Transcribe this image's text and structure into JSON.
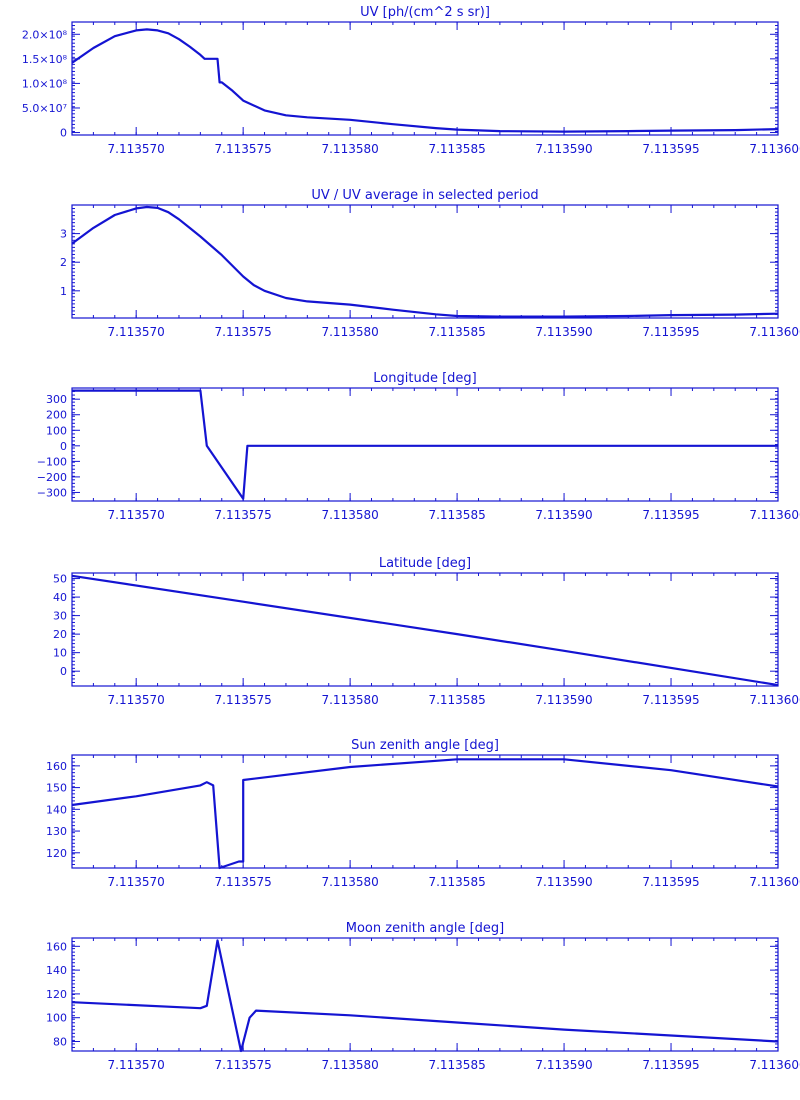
{
  "colors": {
    "plot": "#1414d2",
    "background": "#ffffff"
  },
  "chart_data": [
    {
      "type": "line",
      "title": "UV [ph/(cm^2 s sr)]",
      "x": [
        7.113567,
        7.113568,
        7.113569,
        7.11357,
        7.1135705,
        7.113571,
        7.1135715,
        7.113572,
        7.1135725,
        7.113573,
        7.1135732,
        7.1135738,
        7.1135739,
        7.113574,
        7.1135745,
        7.113575,
        7.113576,
        7.113577,
        7.113578,
        7.11358,
        7.113582,
        7.113584,
        7.113585,
        7.113587,
        7.11359,
        7.113593,
        7.113595,
        7.113598,
        7.1136
      ],
      "y": [
        142000000.0,
        172000000.0,
        196000000.0,
        208000000.0,
        210000000.0,
        208000000.0,
        202000000.0,
        190000000.0,
        175000000.0,
        158000000.0,
        150000000.0,
        150000000.0,
        102000000.0,
        102000000.0,
        85000000.0,
        65000000.0,
        45000000.0,
        35000000.0,
        31000000.0,
        26000000.0,
        17000000.0,
        9000000.0,
        6000000.0,
        3000000.0,
        2000000.0,
        3000000.0,
        4000000.0,
        5000000.0,
        7000000.0
      ],
      "yticks": [
        0,
        50000000.0,
        100000000.0,
        150000000.0,
        200000000.0
      ],
      "yticklabels": [
        "0",
        "5.0×10⁷",
        "1.0×10⁸",
        "1.5×10⁸",
        "2.0×10⁸"
      ],
      "ylim": [
        -5000000.0,
        225000000.0
      ],
      "xlim": [
        7.113567,
        7.1136
      ]
    },
    {
      "type": "line",
      "title": "UV / UV average in selected period",
      "x": [
        7.113567,
        7.113568,
        7.113569,
        7.11357,
        7.1135705,
        7.113571,
        7.1135715,
        7.113572,
        7.1135725,
        7.113573,
        7.113574,
        7.113575,
        7.1135755,
        7.113576,
        7.113577,
        7.113578,
        7.11358,
        7.113582,
        7.113584,
        7.113585,
        7.113587,
        7.11359,
        7.113593,
        7.113595,
        7.113598,
        7.1136
      ],
      "y": [
        2.65,
        3.2,
        3.65,
        3.88,
        3.93,
        3.9,
        3.75,
        3.5,
        3.2,
        2.9,
        2.25,
        1.5,
        1.2,
        1.0,
        0.75,
        0.63,
        0.52,
        0.34,
        0.18,
        0.12,
        0.1,
        0.1,
        0.12,
        0.15,
        0.17,
        0.2
      ],
      "yticks": [
        1,
        2,
        3
      ],
      "yticklabels": [
        "1",
        "2",
        "3"
      ],
      "ylim": [
        0.05,
        4.0
      ],
      "xlim": [
        7.113567,
        7.1136
      ]
    },
    {
      "type": "line",
      "title": "Longitude [deg]",
      "x": [
        7.113567,
        7.113573,
        7.113573,
        7.1135733,
        7.113575,
        7.1135752,
        7.1136
      ],
      "y": [
        355,
        355,
        355,
        0,
        -340,
        0,
        0
      ],
      "yticks": [
        -300,
        -200,
        -100,
        0,
        100,
        200,
        300
      ],
      "yticklabels": [
        "−300",
        "−200",
        "−100",
        "0",
        "100",
        "200",
        "300"
      ],
      "ylim": [
        -355,
        372
      ],
      "xlim": [
        7.113567,
        7.1136
      ]
    },
    {
      "type": "line",
      "title": "Latitude [deg]",
      "x": [
        7.113567,
        7.113575,
        7.113585,
        7.11359,
        7.1136
      ],
      "y": [
        51.5,
        37.5,
        20.0,
        11.0,
        -7.5
      ],
      "yticks": [
        0,
        10,
        20,
        30,
        40,
        50
      ],
      "yticklabels": [
        "0",
        "10",
        "20",
        "30",
        "40",
        "50"
      ],
      "ylim": [
        -8,
        53
      ],
      "xlim": [
        7.113567,
        7.1136
      ]
    },
    {
      "type": "line",
      "title": "Sun zenith angle [deg]",
      "x": [
        7.113567,
        7.11357,
        7.113573,
        7.1135733,
        7.1135736,
        7.1135739,
        7.1135748,
        7.113575,
        7.113575,
        7.11358,
        7.113585,
        7.11359,
        7.113595,
        7.1136
      ],
      "y": [
        142,
        146,
        151,
        152.5,
        151,
        113,
        116,
        116,
        153.5,
        159.5,
        163,
        163,
        158,
        150.5
      ],
      "yticks": [
        120,
        130,
        140,
        150,
        160
      ],
      "yticklabels": [
        "120",
        "130",
        "140",
        "150",
        "160"
      ],
      "ylim": [
        113,
        165
      ],
      "xlim": [
        7.113567,
        7.1136
      ]
    },
    {
      "type": "line",
      "title": "Moon zenith angle [deg]",
      "x": [
        7.113567,
        7.113573,
        7.1135733,
        7.1135738,
        7.1135749,
        7.1135753,
        7.1135756,
        7.11358,
        7.113585,
        7.11359,
        7.113595,
        7.1136
      ],
      "y": [
        113,
        108,
        110,
        165,
        72,
        100,
        106,
        102,
        96,
        90,
        85,
        80
      ],
      "yticks": [
        80,
        100,
        120,
        140,
        160
      ],
      "yticklabels": [
        "80",
        "100",
        "120",
        "140",
        "160"
      ],
      "ylim": [
        72,
        167
      ],
      "xlim": [
        7.113567,
        7.1136
      ]
    }
  ],
  "xticks": [
    7.11357,
    7.113575,
    7.11358,
    7.113585,
    7.11359,
    7.113595,
    7.1136
  ],
  "xticklabels": [
    "7.113570",
    "7.113575",
    "7.113580",
    "7.113585",
    "7.113590",
    "7.113595",
    "7.113600"
  ]
}
